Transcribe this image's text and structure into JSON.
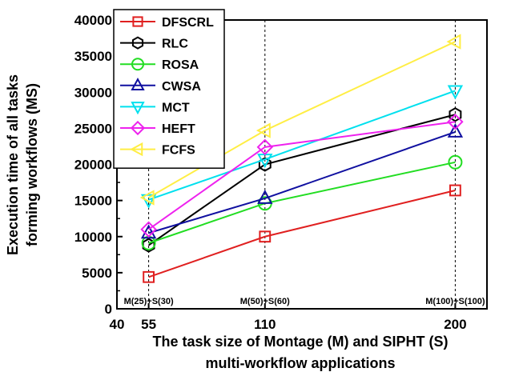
{
  "chart_data": {
    "type": "line",
    "xlabel_lines": [
      "The task size of Montage (M) and SIPHT (S)",
      "multi-workflow applications"
    ],
    "ylabel_lines": [
      "Execution time of all tasks",
      "forming workflows  (MS)"
    ],
    "x": [
      55,
      110,
      200
    ],
    "xlim": [
      40,
      215
    ],
    "ylim": [
      0,
      40000
    ],
    "x_ticks": [
      40,
      55,
      110,
      200
    ],
    "y_ticks": [
      0,
      5000,
      10000,
      15000,
      20000,
      25000,
      30000,
      35000,
      40000
    ],
    "annotations": [
      "M(25)+S(30)",
      "M(50)+S(60)",
      "M(100)+S(100)"
    ],
    "grid": "vertical dashed",
    "legend_position": "top-left",
    "series": [
      {
        "name": "DFSCRL",
        "values": [
          4400,
          10000,
          16400
        ],
        "color": "#e02020",
        "marker": "square"
      },
      {
        "name": "RLC",
        "values": [
          8800,
          20000,
          26900
        ],
        "color": "#000000",
        "marker": "hexagon"
      },
      {
        "name": "ROSA",
        "values": [
          9100,
          14600,
          20300
        ],
        "color": "#22dd22",
        "marker": "circle"
      },
      {
        "name": "CWSA",
        "values": [
          10500,
          15300,
          24500
        ],
        "color": "#1010a0",
        "marker": "triangle-up"
      },
      {
        "name": "MCT",
        "values": [
          15100,
          20700,
          30200
        ],
        "color": "#00e0ee",
        "marker": "triangle-down"
      },
      {
        "name": "HEFT",
        "values": [
          11000,
          22400,
          25900
        ],
        "color": "#ee22ee",
        "marker": "diamond"
      },
      {
        "name": "FCFS",
        "values": [
          15400,
          24700,
          37000
        ],
        "color": "#ffee44",
        "marker": "triangle-left"
      }
    ]
  }
}
